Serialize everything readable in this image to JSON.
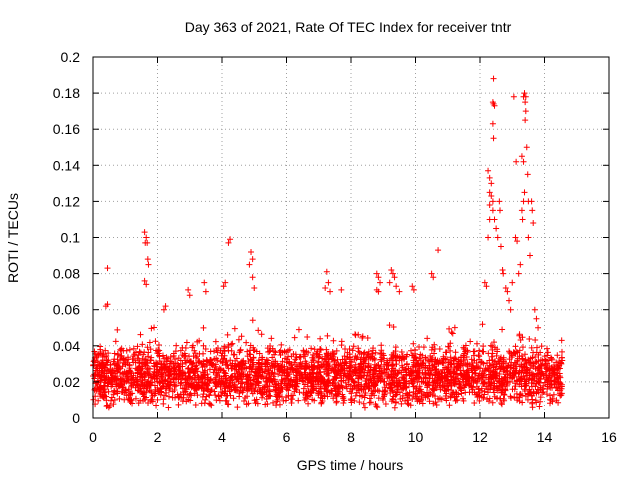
{
  "chart_data": {
    "type": "scatter",
    "title": "Day 363 of 2021, Rate Of TEC Index for receiver tntr",
    "xlabel": "GPS time / hours",
    "ylabel": "ROTI / TECUs",
    "xlim": [
      0,
      16
    ],
    "ylim": [
      0,
      0.2
    ],
    "x_ticks": [
      "0",
      "2",
      "4",
      "6",
      "8",
      "10",
      "12",
      "14",
      "16"
    ],
    "y_ticks": [
      "0",
      "0.02",
      "0.04",
      "0.06",
      "0.08",
      "0.1",
      "0.12",
      "0.14",
      "0.16",
      "0.18",
      "0.2"
    ],
    "x_tick_values": [
      0,
      2,
      4,
      6,
      8,
      10,
      12,
      14,
      16
    ],
    "y_tick_values": [
      0,
      0.02,
      0.04,
      0.06,
      0.08,
      0.1,
      0.12,
      0.14,
      0.16,
      0.18,
      0.2
    ],
    "grid": true,
    "marker": "+",
    "color": "#ff0000",
    "x_range_data": [
      0,
      14.55
    ],
    "baseline_band": [
      0.005,
      0.04
    ],
    "series": [
      {
        "points": [
          [
            0.45,
            0.083
          ],
          [
            0.4,
            0.062
          ],
          [
            0.45,
            0.063
          ],
          [
            1.6,
            0.103
          ],
          [
            1.65,
            0.1
          ],
          [
            1.62,
            0.097
          ],
          [
            1.68,
            0.097
          ],
          [
            1.7,
            0.088
          ],
          [
            1.72,
            0.085
          ],
          [
            1.6,
            0.076
          ],
          [
            1.65,
            0.074
          ],
          [
            2.2,
            0.06
          ],
          [
            2.25,
            0.062
          ],
          [
            2.95,
            0.071
          ],
          [
            3.0,
            0.068
          ],
          [
            3.45,
            0.075
          ],
          [
            3.5,
            0.07
          ],
          [
            4.1,
            0.075
          ],
          [
            4.05,
            0.073
          ],
          [
            4.25,
            0.099
          ],
          [
            4.2,
            0.097
          ],
          [
            4.9,
            0.092
          ],
          [
            4.95,
            0.088
          ],
          [
            4.85,
            0.085
          ],
          [
            4.95,
            0.078
          ],
          [
            5.0,
            0.072
          ],
          [
            7.25,
            0.081
          ],
          [
            7.3,
            0.075
          ],
          [
            7.2,
            0.072
          ],
          [
            7.35,
            0.07
          ],
          [
            7.7,
            0.071
          ],
          [
            8.8,
            0.08
          ],
          [
            8.85,
            0.078
          ],
          [
            8.9,
            0.075
          ],
          [
            8.8,
            0.071
          ],
          [
            8.85,
            0.07
          ],
          [
            9.25,
            0.082
          ],
          [
            9.3,
            0.08
          ],
          [
            9.35,
            0.078
          ],
          [
            9.2,
            0.075
          ],
          [
            9.4,
            0.073
          ],
          [
            9.5,
            0.07
          ],
          [
            9.9,
            0.073
          ],
          [
            9.95,
            0.071
          ],
          [
            10.5,
            0.08
          ],
          [
            10.55,
            0.078
          ],
          [
            10.7,
            0.093
          ],
          [
            12.15,
            0.075
          ],
          [
            12.2,
            0.073
          ],
          [
            12.25,
            0.1
          ],
          [
            12.3,
            0.11
          ],
          [
            12.3,
            0.118
          ],
          [
            12.35,
            0.13
          ],
          [
            12.3,
            0.125
          ],
          [
            12.35,
            0.123
          ],
          [
            12.4,
            0.12
          ],
          [
            12.25,
            0.137
          ],
          [
            12.3,
            0.133
          ],
          [
            12.4,
            0.115
          ],
          [
            12.45,
            0.11
          ],
          [
            12.4,
            0.163
          ],
          [
            12.42,
            0.155
          ],
          [
            12.4,
            0.175
          ],
          [
            12.42,
            0.174
          ],
          [
            12.45,
            0.173
          ],
          [
            12.42,
            0.188
          ],
          [
            12.5,
            0.105
          ],
          [
            12.55,
            0.1
          ],
          [
            12.6,
            0.12
          ],
          [
            12.62,
            0.115
          ],
          [
            12.7,
            0.082
          ],
          [
            12.72,
            0.08
          ],
          [
            12.65,
            0.095
          ],
          [
            12.8,
            0.072
          ],
          [
            12.85,
            0.07
          ],
          [
            12.9,
            0.065
          ],
          [
            12.95,
            0.06
          ],
          [
            13.0,
            0.075
          ],
          [
            13.1,
            0.1
          ],
          [
            13.15,
            0.098
          ],
          [
            13.12,
            0.142
          ],
          [
            13.05,
            0.178
          ],
          [
            13.2,
            0.08
          ],
          [
            13.25,
            0.085
          ],
          [
            13.3,
            0.115
          ],
          [
            13.32,
            0.11
          ],
          [
            13.35,
            0.12
          ],
          [
            13.38,
            0.125
          ],
          [
            13.3,
            0.145
          ],
          [
            13.35,
            0.142
          ],
          [
            13.4,
            0.165
          ],
          [
            13.42,
            0.17
          ],
          [
            13.38,
            0.18
          ],
          [
            13.4,
            0.175
          ],
          [
            13.42,
            0.178
          ],
          [
            13.35,
            0.178
          ],
          [
            13.45,
            0.15
          ],
          [
            13.48,
            0.135
          ],
          [
            13.5,
            0.12
          ],
          [
            13.5,
            0.1
          ],
          [
            13.55,
            0.09
          ],
          [
            13.6,
            0.12
          ],
          [
            13.62,
            0.115
          ],
          [
            13.65,
            0.108
          ],
          [
            13.7,
            0.06
          ],
          [
            13.75,
            0.055
          ],
          [
            13.8,
            0.05
          ]
        ]
      }
    ]
  }
}
